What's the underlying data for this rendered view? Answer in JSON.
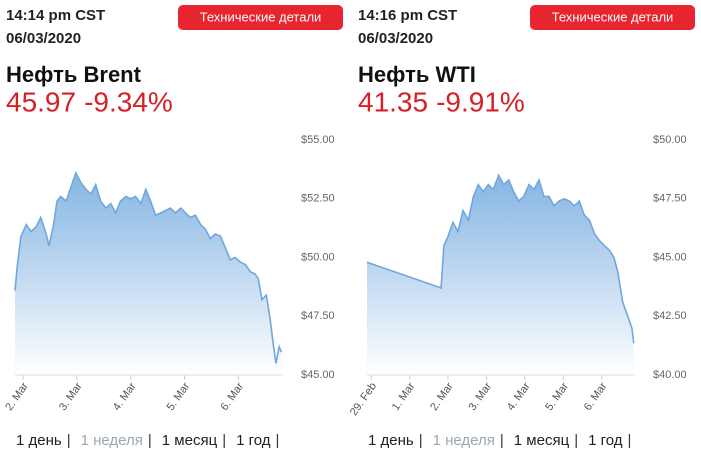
{
  "panels": [
    {
      "time": "14:14 pm CST",
      "date": "06/03/2020",
      "button": "Технические детали",
      "name": "Нефть Brent",
      "price": "45.97",
      "change": "-9.34%",
      "periods": [
        "1 день",
        "1 неделя",
        "1 месяц",
        "1 год"
      ],
      "separator": "|"
    },
    {
      "time": "14:16 pm CST",
      "date": "06/03/2020",
      "button": "Технические детали",
      "name": "Нефть WTI",
      "price": "41.35",
      "change": "-9.91%",
      "periods": [
        "1 день",
        "1 неделя",
        "1 месяц",
        "1 год"
      ],
      "separator": "|"
    }
  ],
  "chart_data": [
    {
      "type": "area",
      "color": "#6fa8dc",
      "x": [
        1.85,
        1.89,
        1.96,
        2.06,
        2.15,
        2.24,
        2.33,
        2.43,
        2.48,
        2.56,
        2.63,
        2.7,
        2.8,
        2.89,
        2.98,
        3.07,
        3.17,
        3.26,
        3.35,
        3.44,
        3.54,
        3.63,
        3.72,
        3.81,
        3.91,
        4.0,
        4.09,
        4.19,
        4.28,
        4.37,
        4.46,
        4.56,
        4.65,
        4.74,
        4.83,
        4.93,
        5.02,
        5.11,
        5.2,
        5.3,
        5.39,
        5.48,
        5.57,
        5.67,
        5.76,
        5.85,
        5.94,
        6.04,
        6.13,
        6.22,
        6.31,
        6.37,
        6.44,
        6.52,
        6.59,
        6.65,
        6.7,
        6.76,
        6.8
      ],
      "values": [
        48.6,
        49.6,
        50.9,
        51.4,
        51.1,
        51.3,
        51.7,
        51.0,
        50.5,
        51.3,
        52.4,
        52.6,
        52.4,
        53.0,
        53.6,
        53.2,
        52.9,
        52.7,
        53.1,
        52.4,
        52.1,
        52.3,
        51.9,
        52.4,
        52.6,
        52.5,
        52.6,
        52.3,
        52.9,
        52.4,
        51.8,
        51.9,
        52.0,
        52.1,
        51.9,
        52.1,
        51.9,
        51.7,
        51.8,
        51.4,
        51.2,
        50.8,
        51.0,
        50.9,
        50.4,
        49.9,
        50.0,
        49.8,
        49.7,
        49.4,
        49.3,
        49.1,
        48.2,
        48.4,
        47.4,
        46.3,
        45.5,
        46.2,
        45.97
      ],
      "xlim": [
        1.85,
        6.83
      ],
      "xticks": [
        {
          "value": 2,
          "label": "2. Mar"
        },
        {
          "value": 3,
          "label": "3. Mar"
        },
        {
          "value": 4,
          "label": "4. Mar"
        },
        {
          "value": 5,
          "label": "5. Mar"
        },
        {
          "value": 6,
          "label": "6. Mar"
        }
      ],
      "ylim": [
        45,
        55
      ],
      "yticks": [
        {
          "value": 45,
          "label": "$45.00"
        },
        {
          "value": 47.5,
          "label": "$47.50"
        },
        {
          "value": 50,
          "label": "$50.00"
        },
        {
          "value": 52.5,
          "label": "$52.50"
        },
        {
          "value": 55,
          "label": "$55.00"
        }
      ]
    },
    {
      "type": "area",
      "color": "#6fa8dc",
      "x": [
        -0.11,
        1.82,
        1.89,
        2.0,
        2.13,
        2.26,
        2.39,
        2.53,
        2.66,
        2.79,
        2.92,
        3.05,
        3.18,
        3.32,
        3.45,
        3.58,
        3.71,
        3.84,
        3.97,
        4.11,
        4.24,
        4.37,
        4.5,
        4.63,
        4.76,
        4.89,
        5.03,
        5.16,
        5.29,
        5.42,
        5.55,
        5.68,
        5.82,
        5.95,
        6.08,
        6.21,
        6.32,
        6.42,
        6.55,
        6.68,
        6.79,
        6.84
      ],
      "values": [
        44.8,
        43.7,
        45.5,
        45.9,
        46.5,
        46.1,
        47.0,
        46.6,
        47.6,
        48.1,
        47.8,
        48.1,
        47.9,
        48.5,
        48.1,
        48.3,
        47.8,
        47.4,
        47.6,
        48.1,
        47.9,
        48.3,
        47.6,
        47.6,
        47.2,
        47.4,
        47.5,
        47.4,
        47.2,
        47.4,
        46.8,
        46.6,
        46.0,
        45.7,
        45.5,
        45.3,
        45.0,
        44.4,
        43.1,
        42.5,
        42.0,
        41.35
      ],
      "xlim": [
        -0.11,
        6.87
      ],
      "xticks": [
        {
          "value": 0,
          "label": "29. Feb"
        },
        {
          "value": 1,
          "label": "1. Mar"
        },
        {
          "value": 2,
          "label": "2. Mar"
        },
        {
          "value": 3,
          "label": "3. Mar"
        },
        {
          "value": 4,
          "label": "4. Mar"
        },
        {
          "value": 5,
          "label": "5. Mar"
        },
        {
          "value": 6,
          "label": "6. Mar"
        }
      ],
      "ylim": [
        40,
        50
      ],
      "yticks": [
        {
          "value": 40,
          "label": "$40.00"
        },
        {
          "value": 42.5,
          "label": "$42.50"
        },
        {
          "value": 45,
          "label": "$45.00"
        },
        {
          "value": 47.5,
          "label": "$47.50"
        },
        {
          "value": 50,
          "label": "$50.00"
        }
      ]
    }
  ]
}
